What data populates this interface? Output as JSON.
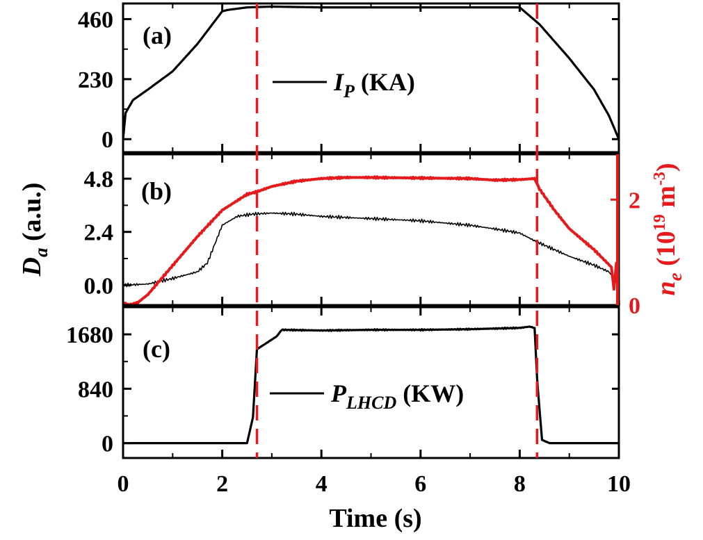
{
  "chart_data": [
    {
      "panel": "a",
      "type": "line",
      "panel_label": "(a)",
      "xlim": [
        0,
        10
      ],
      "ylim": [
        -50,
        520
      ],
      "yticks": [
        "0",
        "230",
        "460"
      ],
      "ytick_values": [
        0,
        230,
        460
      ],
      "xticks": [
        0,
        2,
        4,
        6,
        8,
        10
      ],
      "legend": {
        "symbol": "I",
        "subscript": "P",
        "unit": " (KA)"
      },
      "series": [
        {
          "name": "I_P",
          "color": "#000000",
          "x": [
            0,
            0.05,
            0.2,
            0.5,
            1.0,
            1.5,
            2.0,
            2.1,
            2.5,
            3.0,
            4.0,
            5.0,
            6.0,
            7.0,
            8.0,
            8.4,
            9.0,
            9.5,
            9.8,
            10.0
          ],
          "y": [
            0,
            100,
            150,
            190,
            260,
            365,
            490,
            495,
            505,
            508,
            505,
            505,
            505,
            505,
            505,
            440,
            310,
            190,
            90,
            0
          ]
        }
      ]
    },
    {
      "panel": "b",
      "type": "line",
      "panel_label": "(b)",
      "xlim": [
        0,
        10
      ],
      "ylim": [
        -0.9,
        5.9
      ],
      "yticks": [
        "0.0",
        "2.4",
        "4.8"
      ],
      "ytick_values": [
        0,
        2.4,
        4.8
      ],
      "xticks": [
        0,
        2,
        4,
        6,
        8,
        10
      ],
      "ylabel": {
        "symbol": "D",
        "subscript": "a",
        "unit": " (a.u.)"
      },
      "ylabel_right": {
        "symbol": "n",
        "subscript": "e",
        "unit_open": " (10",
        "sup": "19",
        "unit_mid": " m",
        "sup2": "-3",
        "unit_close": ")"
      },
      "y2lim": [
        0,
        2.86
      ],
      "y2ticks": [
        "0",
        "2"
      ],
      "y2tick_values": [
        0,
        2
      ],
      "right_color": "#e41a1c",
      "series": [
        {
          "name": "D_a",
          "color": "#000000",
          "axis": "left",
          "x": [
            0,
            0.5,
            1.0,
            1.5,
            1.7,
            2.0,
            2.3,
            2.6,
            3.0,
            3.5,
            4.0,
            5.0,
            6.0,
            7.0,
            7.6,
            8.0,
            8.3,
            8.6,
            9.0,
            9.5,
            9.8,
            10.0
          ],
          "y": [
            0,
            0.05,
            0.3,
            0.6,
            1.0,
            2.7,
            3.1,
            3.2,
            3.25,
            3.2,
            3.1,
            3.0,
            2.9,
            2.7,
            2.5,
            2.35,
            2.0,
            1.7,
            1.3,
            0.9,
            0.6,
            0.0
          ]
        },
        {
          "name": "n_e",
          "color": "#e41a1c",
          "axis": "right",
          "x": [
            0,
            0.1,
            0.3,
            0.5,
            1.0,
            1.5,
            2.0,
            2.5,
            2.7,
            3.0,
            3.5,
            4.0,
            4.5,
            5.0,
            6.0,
            7.0,
            7.5,
            8.0,
            8.3,
            8.4,
            8.7,
            9.0,
            9.5,
            9.85,
            9.9,
            9.95,
            10.0
          ],
          "y": [
            0.05,
            0.0,
            0.05,
            0.2,
            0.75,
            1.3,
            1.8,
            2.1,
            2.15,
            2.25,
            2.35,
            2.4,
            2.42,
            2.42,
            2.41,
            2.4,
            2.37,
            2.38,
            2.4,
            2.2,
            1.8,
            1.45,
            1.05,
            0.72,
            0.3,
            0.8,
            0.0
          ]
        }
      ]
    },
    {
      "panel": "c",
      "type": "line",
      "panel_label": "(c)",
      "xlim": [
        0,
        10
      ],
      "ylim": [
        -230,
        2100
      ],
      "yticks": [
        "0",
        "840",
        "1680"
      ],
      "ytick_values": [
        0,
        840,
        1680
      ],
      "xticks": [
        0,
        2,
        4,
        6,
        8,
        10
      ],
      "xticklabels": [
        "0",
        "2",
        "4",
        "6",
        "8",
        "10"
      ],
      "xlabel": "Time (s)",
      "legend": {
        "symbol": "P",
        "subscript": "LHCD",
        "unit": " (KW)"
      },
      "series": [
        {
          "name": "P_LHCD",
          "color": "#000000",
          "x": [
            0,
            2.5,
            2.62,
            2.7,
            2.9,
            3.1,
            3.2,
            4,
            5,
            6,
            7,
            8,
            8.2,
            8.3,
            8.35,
            8.45,
            8.6,
            10.0
          ],
          "y": [
            0,
            0,
            400,
            1450,
            1550,
            1650,
            1750,
            1740,
            1750,
            1750,
            1760,
            1780,
            1800,
            1780,
            1000,
            50,
            0,
            0
          ]
        }
      ]
    }
  ],
  "markers": {
    "dashed_vlines_x": [
      2.7,
      8.35
    ],
    "dashed_color": "#e41a1c"
  }
}
